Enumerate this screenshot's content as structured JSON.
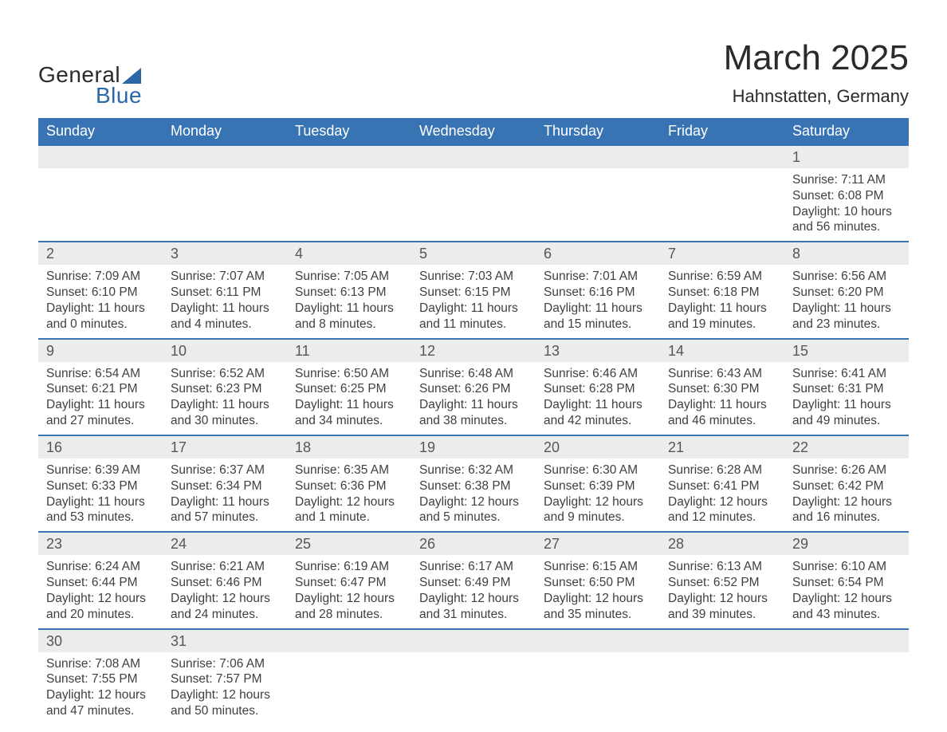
{
  "logo": {
    "word1": "General",
    "word2": "Blue"
  },
  "title": {
    "month": "March 2025",
    "location": "Hahnstatten, Germany"
  },
  "columns": [
    "Sunday",
    "Monday",
    "Tuesday",
    "Wednesday",
    "Thursday",
    "Friday",
    "Saturday"
  ],
  "colors": {
    "header_bg": "#3874b4",
    "header_text": "#ffffff",
    "daynum_bg": "#ececec",
    "row_border": "#3874b4",
    "body_text": "#3f3f3f",
    "logo_accent": "#2b68a8"
  },
  "label": {
    "sunrise": "Sunrise: ",
    "sunset": "Sunset: ",
    "daylight": "Daylight: "
  },
  "weeks": [
    {
      "nums": [
        "",
        "",
        "",
        "",
        "",
        "",
        "1"
      ],
      "days": [
        null,
        null,
        null,
        null,
        null,
        null,
        {
          "sunrise": "7:11 AM",
          "sunset": "6:08 PM",
          "daylight1": "10 hours",
          "daylight2": "and 56 minutes."
        }
      ]
    },
    {
      "nums": [
        "2",
        "3",
        "4",
        "5",
        "6",
        "7",
        "8"
      ],
      "days": [
        {
          "sunrise": "7:09 AM",
          "sunset": "6:10 PM",
          "daylight1": "11 hours",
          "daylight2": "and 0 minutes."
        },
        {
          "sunrise": "7:07 AM",
          "sunset": "6:11 PM",
          "daylight1": "11 hours",
          "daylight2": "and 4 minutes."
        },
        {
          "sunrise": "7:05 AM",
          "sunset": "6:13 PM",
          "daylight1": "11 hours",
          "daylight2": "and 8 minutes."
        },
        {
          "sunrise": "7:03 AM",
          "sunset": "6:15 PM",
          "daylight1": "11 hours",
          "daylight2": "and 11 minutes."
        },
        {
          "sunrise": "7:01 AM",
          "sunset": "6:16 PM",
          "daylight1": "11 hours",
          "daylight2": "and 15 minutes."
        },
        {
          "sunrise": "6:59 AM",
          "sunset": "6:18 PM",
          "daylight1": "11 hours",
          "daylight2": "and 19 minutes."
        },
        {
          "sunrise": "6:56 AM",
          "sunset": "6:20 PM",
          "daylight1": "11 hours",
          "daylight2": "and 23 minutes."
        }
      ]
    },
    {
      "nums": [
        "9",
        "10",
        "11",
        "12",
        "13",
        "14",
        "15"
      ],
      "days": [
        {
          "sunrise": "6:54 AM",
          "sunset": "6:21 PM",
          "daylight1": "11 hours",
          "daylight2": "and 27 minutes."
        },
        {
          "sunrise": "6:52 AM",
          "sunset": "6:23 PM",
          "daylight1": "11 hours",
          "daylight2": "and 30 minutes."
        },
        {
          "sunrise": "6:50 AM",
          "sunset": "6:25 PM",
          "daylight1": "11 hours",
          "daylight2": "and 34 minutes."
        },
        {
          "sunrise": "6:48 AM",
          "sunset": "6:26 PM",
          "daylight1": "11 hours",
          "daylight2": "and 38 minutes."
        },
        {
          "sunrise": "6:46 AM",
          "sunset": "6:28 PM",
          "daylight1": "11 hours",
          "daylight2": "and 42 minutes."
        },
        {
          "sunrise": "6:43 AM",
          "sunset": "6:30 PM",
          "daylight1": "11 hours",
          "daylight2": "and 46 minutes."
        },
        {
          "sunrise": "6:41 AM",
          "sunset": "6:31 PM",
          "daylight1": "11 hours",
          "daylight2": "and 49 minutes."
        }
      ]
    },
    {
      "nums": [
        "16",
        "17",
        "18",
        "19",
        "20",
        "21",
        "22"
      ],
      "days": [
        {
          "sunrise": "6:39 AM",
          "sunset": "6:33 PM",
          "daylight1": "11 hours",
          "daylight2": "and 53 minutes."
        },
        {
          "sunrise": "6:37 AM",
          "sunset": "6:34 PM",
          "daylight1": "11 hours",
          "daylight2": "and 57 minutes."
        },
        {
          "sunrise": "6:35 AM",
          "sunset": "6:36 PM",
          "daylight1": "12 hours",
          "daylight2": "and 1 minute."
        },
        {
          "sunrise": "6:32 AM",
          "sunset": "6:38 PM",
          "daylight1": "12 hours",
          "daylight2": "and 5 minutes."
        },
        {
          "sunrise": "6:30 AM",
          "sunset": "6:39 PM",
          "daylight1": "12 hours",
          "daylight2": "and 9 minutes."
        },
        {
          "sunrise": "6:28 AM",
          "sunset": "6:41 PM",
          "daylight1": "12 hours",
          "daylight2": "and 12 minutes."
        },
        {
          "sunrise": "6:26 AM",
          "sunset": "6:42 PM",
          "daylight1": "12 hours",
          "daylight2": "and 16 minutes."
        }
      ]
    },
    {
      "nums": [
        "23",
        "24",
        "25",
        "26",
        "27",
        "28",
        "29"
      ],
      "days": [
        {
          "sunrise": "6:24 AM",
          "sunset": "6:44 PM",
          "daylight1": "12 hours",
          "daylight2": "and 20 minutes."
        },
        {
          "sunrise": "6:21 AM",
          "sunset": "6:46 PM",
          "daylight1": "12 hours",
          "daylight2": "and 24 minutes."
        },
        {
          "sunrise": "6:19 AM",
          "sunset": "6:47 PM",
          "daylight1": "12 hours",
          "daylight2": "and 28 minutes."
        },
        {
          "sunrise": "6:17 AM",
          "sunset": "6:49 PM",
          "daylight1": "12 hours",
          "daylight2": "and 31 minutes."
        },
        {
          "sunrise": "6:15 AM",
          "sunset": "6:50 PM",
          "daylight1": "12 hours",
          "daylight2": "and 35 minutes."
        },
        {
          "sunrise": "6:13 AM",
          "sunset": "6:52 PM",
          "daylight1": "12 hours",
          "daylight2": "and 39 minutes."
        },
        {
          "sunrise": "6:10 AM",
          "sunset": "6:54 PM",
          "daylight1": "12 hours",
          "daylight2": "and 43 minutes."
        }
      ]
    },
    {
      "nums": [
        "30",
        "31",
        "",
        "",
        "",
        "",
        ""
      ],
      "days": [
        {
          "sunrise": "7:08 AM",
          "sunset": "7:55 PM",
          "daylight1": "12 hours",
          "daylight2": "and 47 minutes."
        },
        {
          "sunrise": "7:06 AM",
          "sunset": "7:57 PM",
          "daylight1": "12 hours",
          "daylight2": "and 50 minutes."
        },
        null,
        null,
        null,
        null,
        null
      ]
    }
  ]
}
